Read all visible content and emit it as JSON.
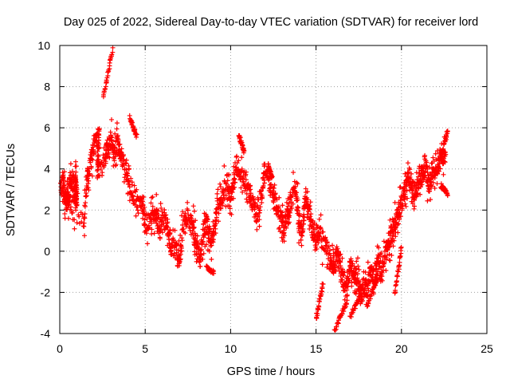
{
  "chart_data": {
    "type": "scatter",
    "title": "Day 025 of 2022, Sidereal Day-to-day VTEC variation (SDTVAR) for receiver lord",
    "xlabel": "GPS time / hours",
    "ylabel": "SDTVAR / TECUs",
    "xlim": [
      0,
      25
    ],
    "ylim": [
      -4,
      10
    ],
    "xticks": [
      0,
      5,
      10,
      15,
      20,
      25
    ],
    "yticks": [
      -4,
      -2,
      0,
      2,
      4,
      6,
      8,
      10
    ],
    "grid": true,
    "marker": "+",
    "color": "#ff0000",
    "series": [
      {
        "name": "SDTVAR",
        "trace": [
          [
            0.05,
            3.0
          ],
          [
            0.2,
            3.3
          ],
          [
            0.3,
            2.6
          ],
          [
            0.45,
            2.3
          ],
          [
            0.6,
            3.5
          ],
          [
            0.8,
            3.2
          ],
          [
            1.0,
            2.4
          ],
          [
            0.9,
            3.4
          ],
          [
            1.0,
            2.9
          ],
          [
            0.3,
            2.2
          ],
          [
            1.4,
            1.5
          ],
          [
            1.6,
            3.4
          ],
          [
            1.8,
            4.3
          ],
          [
            2.0,
            5.2
          ],
          [
            2.3,
            5.7
          ],
          [
            2.2,
            3.9
          ],
          [
            2.6,
            4.3
          ],
          [
            2.8,
            5.1
          ],
          [
            3.0,
            5.5
          ],
          [
            3.2,
            4.7
          ],
          [
            3.4,
            5.3
          ],
          [
            3.6,
            4.6
          ],
          [
            3.9,
            3.9
          ],
          [
            4.2,
            3.0
          ],
          [
            4.5,
            2.3
          ],
          [
            4.8,
            2.2
          ],
          [
            5.0,
            1.4
          ],
          [
            5.3,
            1.6
          ],
          [
            5.6,
            2.0
          ],
          [
            5.8,
            1.3
          ],
          [
            6.0,
            1.6
          ],
          [
            6.3,
            1.2
          ],
          [
            6.5,
            0.3
          ],
          [
            6.8,
            0.1
          ],
          [
            7.0,
            -0.5
          ],
          [
            7.2,
            1.1
          ],
          [
            7.5,
            1.7
          ],
          [
            7.8,
            1.1
          ],
          [
            8.0,
            0.3
          ],
          [
            8.2,
            -0.2
          ],
          [
            8.4,
            0.9
          ],
          [
            8.6,
            1.4
          ],
          [
            8.8,
            0.6
          ],
          [
            9.0,
            0.9
          ],
          [
            9.2,
            2.0
          ],
          [
            9.5,
            2.6
          ],
          [
            9.8,
            3.3
          ],
          [
            10.0,
            2.5
          ],
          [
            10.2,
            3.8
          ],
          [
            10.5,
            3.7
          ],
          [
            10.8,
            3.6
          ],
          [
            11.1,
            2.8
          ],
          [
            11.3,
            2.3
          ],
          [
            11.5,
            1.8
          ],
          [
            11.8,
            2.6
          ],
          [
            12.0,
            3.9
          ],
          [
            12.3,
            3.1
          ],
          [
            12.6,
            2.5
          ],
          [
            12.9,
            1.7
          ],
          [
            13.1,
            1.0
          ],
          [
            13.3,
            1.7
          ],
          [
            13.5,
            2.3
          ],
          [
            13.8,
            2.9
          ],
          [
            14.0,
            1.6
          ],
          [
            14.2,
            0.9
          ],
          [
            14.4,
            2.8
          ],
          [
            14.6,
            1.8
          ],
          [
            14.8,
            1.0
          ],
          [
            15.0,
            0.6
          ],
          [
            15.2,
            0.9
          ],
          [
            15.5,
            0.3
          ],
          [
            15.8,
            -0.2
          ],
          [
            16.0,
            -0.8
          ],
          [
            16.2,
            -0.2
          ],
          [
            16.4,
            -0.6
          ],
          [
            16.6,
            -1.4
          ],
          [
            16.8,
            -1.9
          ],
          [
            17.0,
            -0.6
          ],
          [
            17.2,
            -1.0
          ],
          [
            17.4,
            -1.3
          ],
          [
            17.6,
            -2.2
          ],
          [
            17.8,
            -1.6
          ],
          [
            18.0,
            -1.8
          ],
          [
            18.2,
            -0.9
          ],
          [
            18.4,
            -1.4
          ],
          [
            18.6,
            -0.6
          ],
          [
            18.8,
            -1.1
          ],
          [
            19.0,
            -0.3
          ],
          [
            19.2,
            0.4
          ],
          [
            19.4,
            0.8
          ],
          [
            19.6,
            1.2
          ],
          [
            19.8,
            1.8
          ],
          [
            20.0,
            2.3
          ],
          [
            20.2,
            3.0
          ],
          [
            20.4,
            3.6
          ],
          [
            20.6,
            3.1
          ],
          [
            20.8,
            2.8
          ],
          [
            21.0,
            3.4
          ],
          [
            21.2,
            3.8
          ],
          [
            21.4,
            4.1
          ],
          [
            21.6,
            3.3
          ],
          [
            21.8,
            3.6
          ],
          [
            22.0,
            4.0
          ],
          [
            22.2,
            4.3
          ],
          [
            22.4,
            4.7
          ],
          [
            22.6,
            4.4
          ]
        ],
        "bursts": [
          [
            2.55,
            7.5,
            3.1,
            9.8
          ],
          [
            4.1,
            6.5,
            4.5,
            5.6
          ],
          [
            10.5,
            5.6,
            10.8,
            4.8
          ],
          [
            15.0,
            -3.3,
            15.4,
            -1.6
          ],
          [
            16.1,
            -3.8,
            16.8,
            -2.5
          ],
          [
            17.0,
            -3.2,
            17.6,
            -2.1
          ],
          [
            18.0,
            -2.6,
            18.6,
            -1.3
          ],
          [
            19.6,
            -2.1,
            20.0,
            0.2
          ],
          [
            22.3,
            4.5,
            22.7,
            5.9
          ],
          [
            22.3,
            3.2,
            22.7,
            2.8
          ],
          [
            12.2,
            4.2,
            12.4,
            3.6
          ],
          [
            8.6,
            -0.8,
            9.0,
            -1.0
          ]
        ]
      }
    ]
  }
}
